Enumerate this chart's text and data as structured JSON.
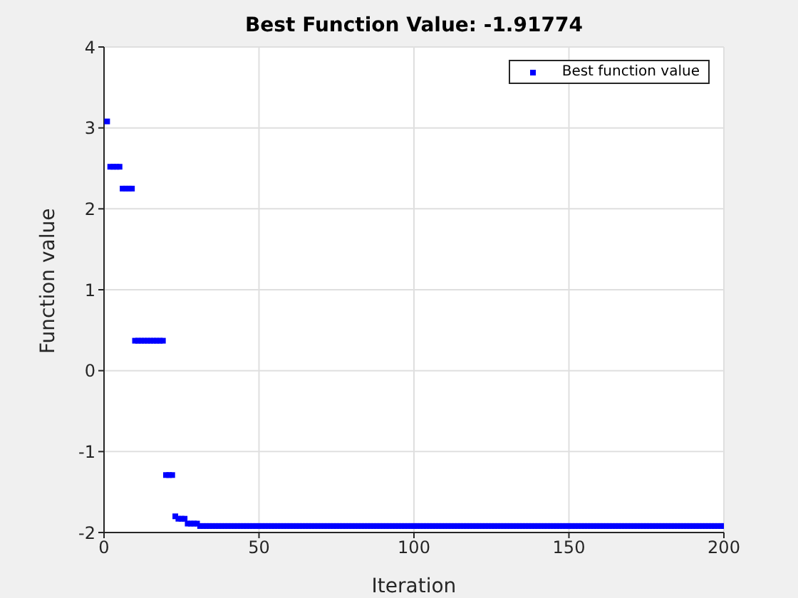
{
  "chart_data": {
    "type": "scatter",
    "title": "Best Function Value: -1.91774",
    "xlabel": "Iteration",
    "ylabel": "Function value",
    "x": [
      1,
      2,
      3,
      4,
      5,
      6,
      7,
      8,
      9,
      10,
      11,
      12,
      13,
      14,
      15,
      16,
      17,
      18,
      19,
      20,
      21,
      22,
      23,
      24,
      25,
      26,
      27,
      28,
      29,
      30,
      31,
      32,
      33,
      34,
      35,
      36,
      37,
      38,
      39,
      40,
      41,
      42,
      43,
      44,
      45,
      46,
      47,
      48,
      49,
      50,
      51,
      52,
      53,
      54,
      55,
      56,
      57,
      58,
      59,
      60,
      61,
      62,
      63,
      64,
      65,
      66,
      67,
      68,
      69,
      70,
      71,
      72,
      73,
      74,
      75,
      76,
      77,
      78,
      79,
      80,
      81,
      82,
      83,
      84,
      85,
      86,
      87,
      88,
      89,
      90,
      91,
      92,
      93,
      94,
      95,
      96,
      97,
      98,
      99,
      100,
      101,
      102,
      103,
      104,
      105,
      106,
      107,
      108,
      109,
      110,
      111,
      112,
      113,
      114,
      115,
      116,
      117,
      118,
      119,
      120,
      121,
      122,
      123,
      124,
      125,
      126,
      127,
      128,
      129,
      130,
      131,
      132,
      133,
      134,
      135,
      136,
      137,
      138,
      139,
      140,
      141,
      142,
      143,
      144,
      145,
      146,
      147,
      148,
      149,
      150,
      151,
      152,
      153,
      154,
      155,
      156,
      157,
      158,
      159,
      160,
      161,
      162,
      163,
      164,
      165,
      166,
      167,
      168,
      169,
      170,
      171,
      172,
      173,
      174,
      175,
      176,
      177,
      178,
      179,
      180,
      181,
      182,
      183,
      184,
      185,
      186,
      187,
      188,
      189,
      190,
      191,
      192,
      193,
      194,
      195,
      196,
      197,
      198,
      199,
      200
    ],
    "series": [
      {
        "name": "Best function value",
        "color": "#0000ff",
        "values": [
          3.08,
          2.52,
          2.52,
          2.52,
          2.52,
          2.25,
          2.25,
          2.25,
          2.25,
          0.37,
          0.37,
          0.37,
          0.37,
          0.37,
          0.37,
          0.37,
          0.37,
          0.37,
          0.37,
          -1.29,
          -1.29,
          -1.29,
          -1.8,
          -1.83,
          -1.83,
          -1.83,
          -1.89,
          -1.89,
          -1.89,
          -1.89,
          -1.92,
          -1.92,
          -1.92,
          -1.92,
          -1.92,
          -1.92,
          -1.92,
          -1.92,
          -1.92,
          -1.92,
          -1.92,
          -1.92,
          -1.92,
          -1.92,
          -1.92,
          -1.92,
          -1.92,
          -1.92,
          -1.92,
          -1.92,
          -1.92,
          -1.92,
          -1.92,
          -1.92,
          -1.92,
          -1.92,
          -1.92,
          -1.92,
          -1.92,
          -1.92,
          -1.92,
          -1.92,
          -1.92,
          -1.92,
          -1.92,
          -1.92,
          -1.92,
          -1.92,
          -1.92,
          -1.92,
          -1.92,
          -1.92,
          -1.92,
          -1.92,
          -1.92,
          -1.92,
          -1.92,
          -1.92,
          -1.92,
          -1.92,
          -1.92,
          -1.92,
          -1.92,
          -1.92,
          -1.92,
          -1.92,
          -1.92,
          -1.92,
          -1.92,
          -1.92,
          -1.92,
          -1.92,
          -1.92,
          -1.92,
          -1.92,
          -1.92,
          -1.92,
          -1.92,
          -1.92,
          -1.92,
          -1.92,
          -1.92,
          -1.92,
          -1.92,
          -1.92,
          -1.92,
          -1.92,
          -1.92,
          -1.92,
          -1.92,
          -1.92,
          -1.92,
          -1.92,
          -1.92,
          -1.92,
          -1.92,
          -1.92,
          -1.92,
          -1.92,
          -1.92,
          -1.92,
          -1.92,
          -1.92,
          -1.92,
          -1.92,
          -1.92,
          -1.92,
          -1.92,
          -1.92,
          -1.92,
          -1.92,
          -1.92,
          -1.92,
          -1.92,
          -1.92,
          -1.92,
          -1.92,
          -1.92,
          -1.92,
          -1.92,
          -1.92,
          -1.92,
          -1.92,
          -1.92,
          -1.92,
          -1.92,
          -1.92,
          -1.92,
          -1.92,
          -1.92,
          -1.92,
          -1.92,
          -1.92,
          -1.92,
          -1.92,
          -1.92,
          -1.92,
          -1.92,
          -1.92,
          -1.92,
          -1.92,
          -1.92,
          -1.92,
          -1.92,
          -1.92,
          -1.92,
          -1.92,
          -1.92,
          -1.92,
          -1.92,
          -1.92,
          -1.92,
          -1.92,
          -1.92,
          -1.92,
          -1.92,
          -1.92,
          -1.92,
          -1.92,
          -1.92,
          -1.92,
          -1.92,
          -1.92,
          -1.92,
          -1.92,
          -1.92,
          -1.92,
          -1.92,
          -1.92,
          -1.92,
          -1.92,
          -1.92,
          -1.92,
          -1.92,
          -1.92,
          -1.92,
          -1.92,
          -1.92,
          -1.92,
          -1.92
        ]
      }
    ],
    "xlim": [
      0,
      200
    ],
    "xticks": [
      0,
      50,
      100,
      150,
      200
    ],
    "ylim": [
      -2,
      4
    ],
    "yticks": [
      -2,
      -1,
      0,
      1,
      2,
      3,
      4
    ],
    "grid": true,
    "legend": "top right",
    "marker": "square"
  }
}
